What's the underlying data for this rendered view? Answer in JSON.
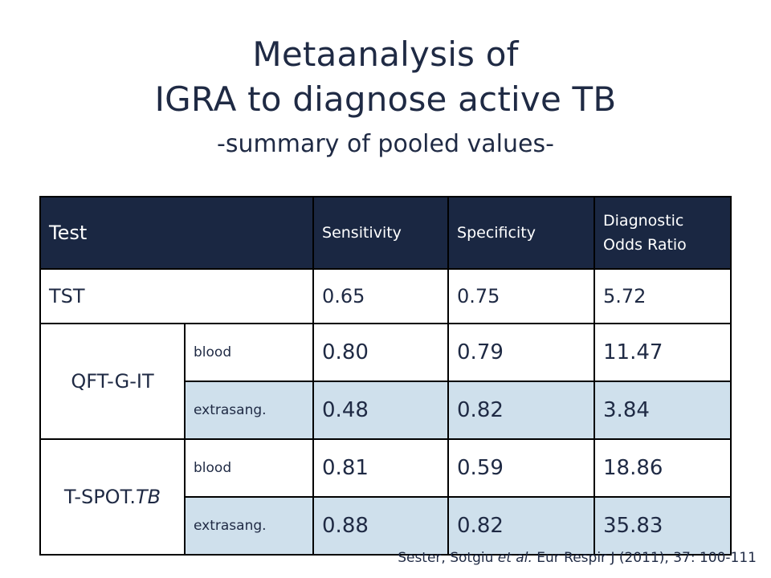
{
  "title": {
    "line1": "Metaanalysis of",
    "line2": "IGRA to diagnose active TB",
    "subtitle": "-summary of pooled values-"
  },
  "table": {
    "headers": {
      "test": "Test",
      "sensitivity": "Sensitivity",
      "specificity": "Specificity",
      "dor_line1": "Diagnostic",
      "dor_line2": "Odds Ratio"
    },
    "tst": {
      "name": "TST",
      "sensitivity": "0.65",
      "specificity": "0.75",
      "dor": "5.72"
    },
    "qft": {
      "name": "QFT-G-IT",
      "rows": [
        {
          "sample": "blood",
          "sensitivity": "0.80",
          "specificity": "0.79",
          "dor": "11.47"
        },
        {
          "sample": "extrasang.",
          "sensitivity": "0.48",
          "specificity": "0.82",
          "dor": "3.84"
        }
      ]
    },
    "tspot": {
      "name_prefix": "T-SPOT.",
      "name_italic": "TB",
      "rows": [
        {
          "sample": "blood",
          "sensitivity": "0.81",
          "specificity": "0.59",
          "dor": "18.86"
        },
        {
          "sample": "extrasang.",
          "sensitivity": "0.88",
          "specificity": "0.82",
          "dor": "35.83"
        }
      ]
    }
  },
  "citation": {
    "authors": "Sester, Sotgiu ",
    "etal": "et al.",
    "journal": " Eur Respir J (2011), 37: 100-111"
  },
  "colors": {
    "header_bg": "#1a2742",
    "shaded_row": "#cfe0ec",
    "text": "#1f2a44"
  }
}
